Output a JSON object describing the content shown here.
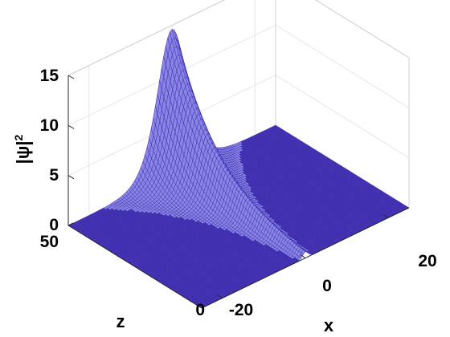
{
  "chart_data": {
    "type": "surface",
    "title": "",
    "xlabel": "x",
    "ylabel": "z",
    "zlabel_base": "|ψ|",
    "zlabel_sup": "2",
    "xlim": [
      -25,
      25
    ],
    "ylim": [
      0,
      50
    ],
    "zlim": [
      0,
      15
    ],
    "xticks": [
      -20,
      0,
      20
    ],
    "yticks": [
      0,
      50
    ],
    "zticks": [
      0,
      5,
      10,
      15
    ],
    "grid": true,
    "surface_color": "#3f2fb0",
    "mesh_color": "#8a86e6",
    "profile": "sech-squared soliton",
    "peak_amplitude": {
      "z_start": 0.64,
      "z_end": 14.6
    },
    "peak_width": {
      "z_start": 1.25,
      "z_end": 0.21
    },
    "peak_center_x": 0
  }
}
